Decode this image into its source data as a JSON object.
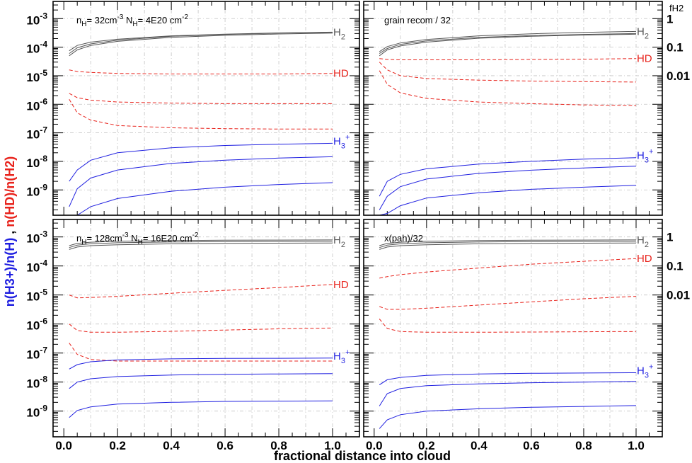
{
  "figure": {
    "xlabel": "fractional distance into cloud",
    "ylabel": {
      "blue_part": "n(H3+)/n(H)",
      "sep": " , ",
      "red_part": "n(HD)/n(H2)"
    },
    "right_axis_label": "fH2",
    "colors": {
      "H2": "#555555",
      "HD": "#e8231c",
      "H3+": "#1f1fe0",
      "grid": "#c4c4c4"
    }
  },
  "chart_data": [
    {
      "type": "line",
      "panel": "top-left",
      "annotation": "nH= 32cm-3 NH= 4E20 cm-2",
      "x_range": [
        -0.04,
        1.1
      ],
      "y_scale": "log",
      "y_range": [
        1.3e-10,
        0.004
      ],
      "y_ticklabels": [
        "10-9",
        "10-8",
        "10-7",
        "10-6",
        "10-5",
        "10-4",
        "10-3"
      ],
      "x_ticklabels": [
        "0.0",
        "0.2",
        "0.4",
        "0.6",
        "0.8",
        "1.0"
      ],
      "grid": true,
      "curve_labels": [
        "H2",
        "HD",
        "H3+"
      ],
      "series": [
        {
          "group": "H2",
          "color": "#555555",
          "dash": "solid",
          "x": [
            0.02,
            0.05,
            0.1,
            0.2,
            0.4,
            0.6,
            0.8,
            1.0
          ],
          "y": [
            6e-05,
            9.5e-05,
            0.00013,
            0.000175,
            0.00024,
            0.00028,
            0.00031,
            0.00033
          ]
        },
        {
          "group": "H2",
          "color": "#555555",
          "dash": "solid",
          "x": [
            0.02,
            0.05,
            0.1,
            0.2,
            0.4,
            0.6,
            0.8,
            1.0
          ],
          "y": [
            7.5e-05,
            0.000115,
            0.00015,
            0.00019,
            0.00025,
            0.000285,
            0.000315,
            0.000335
          ]
        },
        {
          "group": "H2",
          "color": "#555555",
          "dash": "solid",
          "x": [
            0.02,
            0.05,
            0.1,
            0.2,
            0.4,
            0.6,
            0.8,
            1.0
          ],
          "y": [
            5e-05,
            8e-05,
            0.000115,
            0.00016,
            0.00022,
            0.00026,
            0.00029,
            0.00031
          ]
        },
        {
          "group": "HD",
          "color": "#e8231c",
          "dash": "dashed",
          "x": [
            0.02,
            0.05,
            0.1,
            0.2,
            0.4,
            0.6,
            0.8,
            1.0
          ],
          "y": [
            1.6e-05,
            1.4e-05,
            1.3e-05,
            1.2e-05,
            1.15e-05,
            1.15e-05,
            1.15e-05,
            1.2e-05
          ]
        },
        {
          "group": "HD",
          "color": "#e8231c",
          "dash": "dashed",
          "x": [
            0.02,
            0.05,
            0.1,
            0.2,
            0.4,
            0.6,
            0.8,
            1.0
          ],
          "y": [
            2.4e-06,
            1.7e-06,
            1.4e-06,
            1.2e-06,
            1.1e-06,
            1.05e-06,
            1.05e-06,
            1.05e-06
          ]
        },
        {
          "group": "HD",
          "color": "#e8231c",
          "dash": "dashed",
          "x": [
            0.02,
            0.05,
            0.1,
            0.2,
            0.4,
            0.6,
            0.8,
            1.0
          ],
          "y": [
            1.5e-06,
            5e-07,
            2.8e-07,
            1.8e-07,
            1.5e-07,
            1.4e-07,
            1.35e-07,
            1.35e-07
          ]
        },
        {
          "group": "H3+",
          "color": "#1f1fe0",
          "dash": "solid",
          "x": [
            0.02,
            0.05,
            0.1,
            0.2,
            0.4,
            0.6,
            0.8,
            1.0
          ],
          "y": [
            2e-09,
            5e-09,
            1.1e-08,
            2e-08,
            3e-08,
            3.6e-08,
            4e-08,
            4.3e-08
          ]
        },
        {
          "group": "H3+",
          "color": "#1f1fe0",
          "dash": "solid",
          "x": [
            0.02,
            0.05,
            0.1,
            0.2,
            0.4,
            0.6,
            0.8,
            1.0
          ],
          "y": [
            2.6e-10,
            1.1e-09,
            2.6e-09,
            5e-09,
            8.5e-09,
            1.1e-08,
            1.3e-08,
            1.45e-08
          ]
        },
        {
          "group": "H3+",
          "color": "#1f1fe0",
          "dash": "solid",
          "x": [
            0.05,
            0.1,
            0.2,
            0.4,
            0.6,
            0.8,
            1.0
          ],
          "y": [
            1.3e-10,
            2.6e-10,
            5e-10,
            9e-10,
            1.25e-09,
            1.55e-09,
            1.8e-09
          ]
        }
      ]
    },
    {
      "type": "line",
      "panel": "top-right",
      "annotation": "grain recom / 32",
      "x_range": [
        -0.04,
        1.1
      ],
      "y_scale": "log",
      "y_range": [
        1.3e-10,
        0.004
      ],
      "right_ticklabels": [
        "1",
        "0.1",
        "0.01"
      ],
      "x_ticklabels": [
        "0.0",
        "0.2",
        "0.4",
        "0.6",
        "0.8",
        "1.0"
      ],
      "grid": true,
      "curve_labels": [
        "H2",
        "HD",
        "H3+"
      ],
      "series": [
        {
          "group": "H2",
          "color": "#555555",
          "dash": "solid",
          "x": [
            0.02,
            0.05,
            0.1,
            0.2,
            0.4,
            0.6,
            0.8,
            1.0
          ],
          "y": [
            7e-05,
            0.000105,
            0.00014,
            0.000185,
            0.00025,
            0.000295,
            0.00033,
            0.000355
          ]
        },
        {
          "group": "H2",
          "color": "#555555",
          "dash": "solid",
          "x": [
            0.02,
            0.05,
            0.1,
            0.2,
            0.4,
            0.6,
            0.8,
            1.0
          ],
          "y": [
            6e-05,
            9e-05,
            0.000125,
            0.000165,
            0.00022,
            0.000255,
            0.00028,
            0.0003
          ]
        },
        {
          "group": "H2",
          "color": "#555555",
          "dash": "solid",
          "x": [
            0.02,
            0.05,
            0.1,
            0.2,
            0.4,
            0.6,
            0.8,
            1.0
          ],
          "y": [
            5e-05,
            8e-05,
            0.00011,
            0.00015,
            0.000205,
            0.00024,
            0.000265,
            0.000285
          ]
        },
        {
          "group": "HD",
          "color": "#e8231c",
          "dash": "dashed",
          "x": [
            0.02,
            0.05,
            0.1,
            0.2,
            0.4,
            0.6,
            0.8,
            1.0
          ],
          "y": [
            4e-05,
            3.7e-05,
            3.6e-05,
            3.6e-05,
            3.6e-05,
            3.7e-05,
            3.8e-05,
            4e-05
          ]
        },
        {
          "group": "HD",
          "color": "#e8231c",
          "dash": "dashed",
          "x": [
            0.02,
            0.05,
            0.1,
            0.2,
            0.4,
            0.6,
            0.8,
            1.0
          ],
          "y": [
            3e-05,
            1.6e-05,
            1e-05,
            8e-06,
            7e-06,
            6.5e-06,
            6.2e-06,
            6e-06
          ]
        },
        {
          "group": "HD",
          "color": "#e8231c",
          "dash": "dashed",
          "x": [
            0.02,
            0.05,
            0.1,
            0.2,
            0.4,
            0.6,
            0.8,
            1.0
          ],
          "y": [
            1.5e-05,
            5e-06,
            2.5e-06,
            1.6e-06,
            1.2e-06,
            1.05e-06,
            9.5e-07,
            9e-07
          ]
        },
        {
          "group": "H3+",
          "color": "#1f1fe0",
          "dash": "solid",
          "x": [
            0.02,
            0.05,
            0.1,
            0.2,
            0.4,
            0.6,
            0.8,
            1.0
          ],
          "y": [
            6e-10,
            2e-09,
            3.5e-09,
            5.5e-09,
            8e-09,
            1e-08,
            1.2e-08,
            1.35e-08
          ]
        },
        {
          "group": "H3+",
          "color": "#1f1fe0",
          "dash": "solid",
          "x": [
            0.02,
            0.05,
            0.1,
            0.2,
            0.4,
            0.6,
            0.8,
            1.0
          ],
          "y": [
            2e-10,
            6e-10,
            1.3e-09,
            2.4e-09,
            3.8e-09,
            4.9e-09,
            5.9e-09,
            6.8e-09
          ]
        },
        {
          "group": "H3+",
          "color": "#1f1fe0",
          "dash": "solid",
          "x": [
            0.02,
            0.05,
            0.1,
            0.2,
            0.4,
            0.6,
            0.8,
            1.0
          ],
          "y": [
            1.3e-10,
            1.5e-10,
            2.8e-10,
            5.2e-10,
            8e-10,
            1.05e-09,
            1.25e-09,
            1.45e-09
          ]
        }
      ]
    },
    {
      "type": "line",
      "panel": "bottom-left",
      "annotation": "nH= 128cm-3 NH= 16E20 cm-2",
      "x_range": [
        -0.04,
        1.1
      ],
      "y_scale": "log",
      "y_range": [
        1.3e-10,
        0.004
      ],
      "y_ticklabels": [
        "10-9",
        "10-8",
        "10-7",
        "10-6",
        "10-5",
        "10-4",
        "10-3"
      ],
      "x_ticklabels": [
        "0.0",
        "0.2",
        "0.4",
        "0.6",
        "0.8",
        "1.0"
      ],
      "grid": true,
      "curve_labels": [
        "H2",
        "HD",
        "H3+"
      ],
      "series": [
        {
          "group": "H2",
          "color": "#555555",
          "dash": "solid",
          "x": [
            0.02,
            0.05,
            0.1,
            0.2,
            0.4,
            0.6,
            0.8,
            1.0
          ],
          "y": [
            0.0005,
            0.0006,
            0.00066,
            0.00071,
            0.00075,
            0.00077,
            0.00078,
            0.00079
          ]
        },
        {
          "group": "H2",
          "color": "#555555",
          "dash": "solid",
          "x": [
            0.02,
            0.05,
            0.1,
            0.2,
            0.4,
            0.6,
            0.8,
            1.0
          ],
          "y": [
            0.00043,
            0.00052,
            0.00058,
            0.00063,
            0.00067,
            0.00069,
            0.0007,
            0.00071
          ]
        },
        {
          "group": "H2",
          "color": "#555555",
          "dash": "solid",
          "x": [
            0.02,
            0.05,
            0.1,
            0.2,
            0.4,
            0.6,
            0.8,
            1.0
          ],
          "y": [
            0.00037,
            0.00045,
            0.0005,
            0.00054,
            0.00058,
            0.0006,
            0.00061,
            0.00062
          ]
        },
        {
          "group": "HD",
          "color": "#e8231c",
          "dash": "dashed",
          "x": [
            0.02,
            0.05,
            0.1,
            0.2,
            0.4,
            0.6,
            0.8,
            1.0
          ],
          "y": [
            1e-05,
            8e-06,
            8.2e-06,
            9e-06,
            1.15e-05,
            1.45e-05,
            1.8e-05,
            2.3e-05
          ]
        },
        {
          "group": "HD",
          "color": "#e8231c",
          "dash": "dashed",
          "x": [
            0.02,
            0.05,
            0.1,
            0.2,
            0.4,
            0.6,
            0.8,
            1.0
          ],
          "y": [
            1e-06,
            6e-07,
            5.2e-07,
            5.2e-07,
            5.6e-07,
            6.2e-07,
            6.8e-07,
            7.3e-07
          ]
        },
        {
          "group": "HD",
          "color": "#e8231c",
          "dash": "dashed",
          "x": [
            0.02,
            0.05,
            0.1,
            0.2,
            0.4,
            0.6,
            0.8,
            1.0
          ],
          "y": [
            2.2e-07,
            9e-08,
            6e-08,
            5.3e-08,
            5.3e-08,
            5.3e-08,
            5.3e-08,
            5.3e-08
          ]
        },
        {
          "group": "H3+",
          "color": "#1f1fe0",
          "dash": "solid",
          "x": [
            0.02,
            0.05,
            0.1,
            0.2,
            0.4,
            0.6,
            0.8,
            1.0
          ],
          "y": [
            2.8e-08,
            4e-08,
            5e-08,
            5.8e-08,
            6.3e-08,
            6.5e-08,
            6.6e-08,
            6.7e-08
          ]
        },
        {
          "group": "H3+",
          "color": "#1f1fe0",
          "dash": "solid",
          "x": [
            0.02,
            0.05,
            0.1,
            0.2,
            0.4,
            0.6,
            0.8,
            1.0
          ],
          "y": [
            6e-09,
            1e-08,
            1.3e-08,
            1.55e-08,
            1.75e-08,
            1.85e-08,
            1.9e-08,
            1.95e-08
          ]
        },
        {
          "group": "H3+",
          "color": "#1f1fe0",
          "dash": "solid",
          "x": [
            0.02,
            0.05,
            0.1,
            0.2,
            0.4,
            0.6,
            0.8,
            1.0
          ],
          "y": [
            6e-10,
            1.05e-09,
            1.4e-09,
            1.75e-09,
            2e-09,
            2.15e-09,
            2.2e-09,
            2.25e-09
          ]
        }
      ]
    },
    {
      "type": "line",
      "panel": "bottom-right",
      "annotation": "x(pah)/32",
      "x_range": [
        -0.04,
        1.1
      ],
      "y_scale": "log",
      "y_range": [
        1.3e-10,
        0.004
      ],
      "right_ticklabels": [
        "1",
        "0.1",
        "0.01"
      ],
      "x_ticklabels": [
        "0.0",
        "0.2",
        "0.4",
        "0.6",
        "0.8",
        "1.0"
      ],
      "grid": true,
      "curve_labels": [
        "H2",
        "HD",
        "H3+"
      ],
      "series": [
        {
          "group": "H2",
          "color": "#555555",
          "dash": "solid",
          "x": [
            0.02,
            0.05,
            0.1,
            0.2,
            0.4,
            0.6,
            0.8,
            1.0
          ],
          "y": [
            0.0005,
            0.0006,
            0.00066,
            0.00071,
            0.00075,
            0.00077,
            0.00078,
            0.00079
          ]
        },
        {
          "group": "H2",
          "color": "#555555",
          "dash": "solid",
          "x": [
            0.02,
            0.05,
            0.1,
            0.2,
            0.4,
            0.6,
            0.8,
            1.0
          ],
          "y": [
            0.00043,
            0.00052,
            0.00058,
            0.00063,
            0.00067,
            0.00069,
            0.0007,
            0.00071
          ]
        },
        {
          "group": "H2",
          "color": "#555555",
          "dash": "solid",
          "x": [
            0.02,
            0.05,
            0.1,
            0.2,
            0.4,
            0.6,
            0.8,
            1.0
          ],
          "y": [
            0.00037,
            0.00045,
            0.0005,
            0.00054,
            0.00058,
            0.0006,
            0.00061,
            0.00062
          ]
        },
        {
          "group": "HD",
          "color": "#e8231c",
          "dash": "dashed",
          "x": [
            0.02,
            0.05,
            0.1,
            0.2,
            0.4,
            0.6,
            0.8,
            1.0
          ],
          "y": [
            3.8e-05,
            4.3e-05,
            5e-05,
            6.2e-05,
            8.5e-05,
            0.000115,
            0.000145,
            0.00018
          ]
        },
        {
          "group": "HD",
          "color": "#e8231c",
          "dash": "dashed",
          "x": [
            0.02,
            0.05,
            0.1,
            0.2,
            0.4,
            0.6,
            0.8,
            1.0
          ],
          "y": [
            4e-06,
            3.2e-06,
            3.2e-06,
            3.5e-06,
            4.5e-06,
            5.8e-06,
            7.4e-06,
            9e-06
          ]
        },
        {
          "group": "HD",
          "color": "#e8231c",
          "dash": "dashed",
          "x": [
            0.02,
            0.05,
            0.1,
            0.2,
            0.4,
            0.6,
            0.8,
            1.0
          ],
          "y": [
            1.5e-06,
            7e-07,
            5.5e-07,
            5.2e-07,
            5.2e-07,
            5.3e-07,
            5.4e-07,
            5.5e-07
          ]
        },
        {
          "group": "H3+",
          "color": "#1f1fe0",
          "dash": "solid",
          "x": [
            0.02,
            0.05,
            0.1,
            0.2,
            0.4,
            0.6,
            0.8,
            1.0
          ],
          "y": [
            8e-09,
            1.2e-08,
            1.45e-08,
            1.7e-08,
            1.9e-08,
            2e-08,
            2.05e-08,
            2.1e-08
          ]
        },
        {
          "group": "H3+",
          "color": "#1f1fe0",
          "dash": "solid",
          "x": [
            0.02,
            0.05,
            0.1,
            0.2,
            0.4,
            0.6,
            0.8,
            1.0
          ],
          "y": [
            1.5e-09,
            4e-09,
            6e-09,
            7.5e-09,
            8.7e-09,
            9.5e-09,
            1e-08,
            1.05e-08
          ]
        },
        {
          "group": "H3+",
          "color": "#1f1fe0",
          "dash": "solid",
          "x": [
            0.02,
            0.05,
            0.1,
            0.2,
            0.4,
            0.6,
            0.8,
            1.0
          ],
          "y": [
            2.5e-10,
            5e-10,
            7.5e-10,
            1e-09,
            1.2e-09,
            1.35e-09,
            1.45e-09,
            1.55e-09
          ]
        }
      ]
    }
  ]
}
